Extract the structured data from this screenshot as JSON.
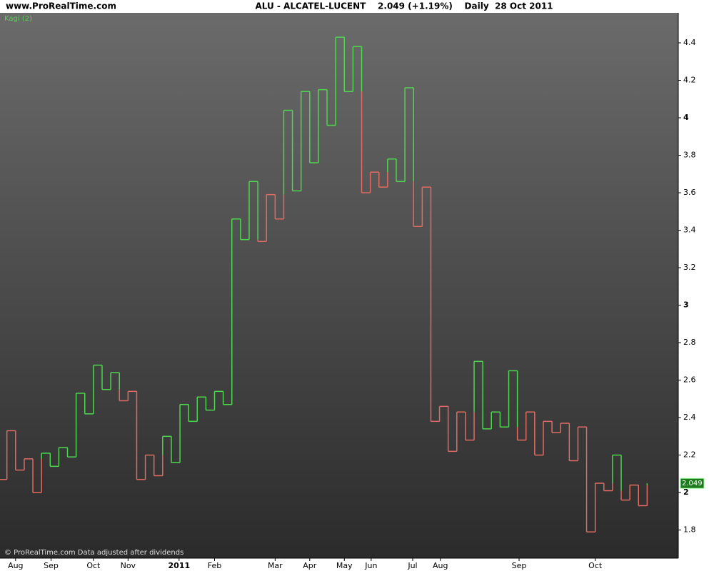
{
  "header": {
    "site": "www.ProRealTime.com",
    "title": "ALU - ALCATEL-LUCENT    2.049 (+1.19%)    Daily  28 Oct 2011"
  },
  "chart_data": {
    "type": "kagi",
    "indicator": "Kagi (2)",
    "footer": "© ProRealTime.com  Data adjusted after dividends",
    "up_color": "#4fd64f",
    "down_color": "#e06b62",
    "values": [
      2.07,
      2.33,
      2.12,
      2.18,
      2.0,
      2.21,
      2.14,
      2.24,
      2.19,
      2.53,
      2.42,
      2.68,
      2.55,
      2.64,
      2.49,
      2.54,
      2.07,
      2.2,
      2.09,
      2.3,
      2.16,
      2.47,
      2.38,
      2.51,
      2.44,
      2.54,
      2.47,
      3.46,
      3.35,
      3.66,
      3.34,
      3.59,
      3.46,
      4.04,
      3.61,
      4.14,
      3.76,
      4.15,
      3.96,
      4.43,
      4.14,
      4.38,
      3.6,
      3.71,
      3.63,
      3.78,
      3.66,
      4.16,
      3.42,
      3.63,
      2.38,
      2.46,
      2.22,
      2.43,
      2.28,
      2.7,
      2.34,
      2.43,
      2.35,
      2.65,
      2.28,
      2.43,
      2.2,
      2.38,
      2.32,
      2.37,
      2.17,
      2.35,
      1.79,
      2.05,
      2.01,
      2.2,
      1.96,
      2.04,
      1.93,
      2.049
    ],
    "xlim": [
      0.2,
      78.6
    ],
    "xticks": [
      {
        "value": 2.0,
        "label": "Aug"
      },
      {
        "value": 6.1,
        "label": "Sep"
      },
      {
        "value": 11.0,
        "label": "Oct"
      },
      {
        "value": 15.0,
        "label": "Nov"
      },
      {
        "value": 20.9,
        "label": "2011"
      },
      {
        "value": 25.0,
        "label": "Feb"
      },
      {
        "value": 32.0,
        "label": "Mar"
      },
      {
        "value": 36.0,
        "label": "Apr"
      },
      {
        "value": 40.0,
        "label": "May"
      },
      {
        "value": 43.1,
        "label": "Jun"
      },
      {
        "value": 47.9,
        "label": "Jul"
      },
      {
        "value": 51.1,
        "label": "Aug"
      },
      {
        "value": 60.2,
        "label": "Sep"
      },
      {
        "value": 69.0,
        "label": "Oct"
      }
    ],
    "ylim": [
      1.65,
      4.56
    ],
    "yticks": [
      1.8,
      2,
      2.2,
      2.4,
      2.6,
      2.8,
      3,
      3.2,
      3.4,
      3.6,
      3.8,
      4,
      4.2,
      4.4
    ]
  }
}
